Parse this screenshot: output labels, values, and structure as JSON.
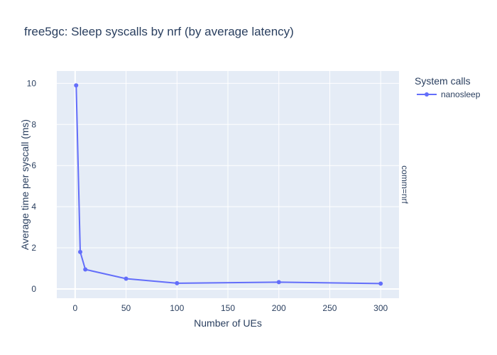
{
  "chart_data": {
    "type": "line",
    "title": "free5gc: Sleep syscalls by nrf (by average latency)",
    "xlabel": "Number of UEs",
    "ylabel": "Average time per syscall (ms)",
    "xlim": [
      -18,
      318
    ],
    "ylim": [
      -0.45,
      10.6
    ],
    "x_ticks": [
      0,
      50,
      100,
      150,
      200,
      250,
      300
    ],
    "y_ticks": [
      0,
      2,
      4,
      6,
      8,
      10
    ],
    "grid": true,
    "legend": {
      "title": "System calls",
      "placement": "top-right"
    },
    "facet_label": "comm=nrf",
    "series": [
      {
        "name": "nanosleep",
        "color": "#636efa",
        "points": [
          {
            "x": 1,
            "y": 9.9
          },
          {
            "x": 5,
            "y": 1.8
          },
          {
            "x": 10,
            "y": 0.95
          },
          {
            "x": 50,
            "y": 0.5
          },
          {
            "x": 100,
            "y": 0.28
          },
          {
            "x": 200,
            "y": 0.33
          },
          {
            "x": 300,
            "y": 0.26
          }
        ]
      }
    ]
  }
}
